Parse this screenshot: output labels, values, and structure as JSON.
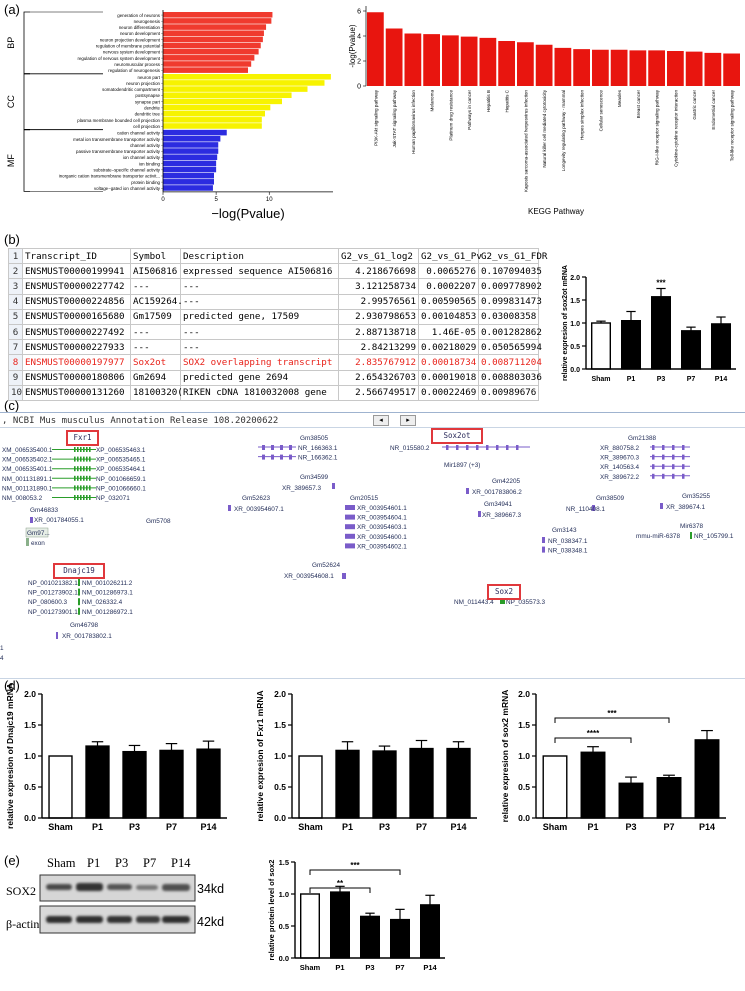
{
  "panel_labels": {
    "a": "(a)",
    "b": "(b)",
    "c": "(c)",
    "d": "(d)",
    "e": "(e)"
  },
  "chart_data": [
    {
      "type": "bar",
      "orientation": "horizontal",
      "xlabel": "−log(Pvalue)",
      "xticks": [
        "0",
        "5",
        "10"
      ],
      "xlim": [
        0,
        16
      ],
      "groups": [
        {
          "name": "BP",
          "color": "#f03a2e",
          "categories": [
            "generation of neurons",
            "neurogenesis",
            "neuron differentiation",
            "neuron development",
            "neuron projection development",
            "regulation of membrane potential",
            "nervous system development",
            "regulation of nervous system development",
            "neuromuscular process",
            "regulation of neurogenesis"
          ],
          "values": [
            10.3,
            10.2,
            9.7,
            9.5,
            9.4,
            9.2,
            9.0,
            8.6,
            8.3,
            8.0
          ]
        },
        {
          "name": "CC",
          "color": "#f7f300",
          "categories": [
            "neuron part",
            "neuron projection",
            "somatodendritic compartment",
            "postsynapse",
            "synapse part",
            "dendrite",
            "dendritic tree",
            "plasma membrane bounded cell projection",
            "cell projection"
          ],
          "values": [
            15.8,
            15.2,
            13.6,
            12.1,
            11.2,
            10.1,
            9.6,
            9.3,
            9.3
          ]
        },
        {
          "name": "MF",
          "color": "#2c2ce0",
          "categories": [
            "cation channel activity",
            "metal ion transmembrane transporter activity",
            "channel activity",
            "passive transmembrane transporter activity",
            "ion channel activity",
            "ion binding",
            "substrate−specific channel activity",
            "inorganic cation transmembrane transporter activit...",
            "protein binding",
            "voltage−gated ion channel activity"
          ],
          "values": [
            6.0,
            5.4,
            5.2,
            5.2,
            5.1,
            5.0,
            5.0,
            4.8,
            4.8,
            4.7
          ]
        }
      ]
    },
    {
      "type": "bar",
      "ylabel": "-log(Pvalue)",
      "xlabel": "KEGG Pathway",
      "yticks": [
        "0",
        "2",
        "4",
        "6"
      ],
      "ylim": [
        0,
        6.4
      ],
      "color": "#e8150f",
      "categories": [
        "PI3K-Akt signaling pathway",
        "Jak-STAT signaling pathway",
        "Human papillomavirus infection",
        "Melanoma",
        "Platinum drug resistance",
        "Pathways in cancer",
        "Hepatitis B",
        "Hepatitis C",
        "Kaposis sarcoma-associated herpesvirus infection",
        "Natural killer cell mediated cytotoxicity",
        "Longevity regulating pathway - mammal",
        "Herpes simplex infection",
        "Cellular senescence",
        "Measles",
        "Breast cancer",
        "RIG-I-like receptor signaling pathway",
        "Cytokine-cytokine receptor interaction",
        "Gastric cancer",
        "Endometrial cancer",
        "Toll-like receptor signaling pathway"
      ],
      "values": [
        5.9,
        4.6,
        4.2,
        4.15,
        4.05,
        3.95,
        3.85,
        3.6,
        3.5,
        3.3,
        3.05,
        2.95,
        2.9,
        2.9,
        2.85,
        2.85,
        2.8,
        2.75,
        2.65,
        2.6
      ]
    },
    {
      "type": "bar",
      "ylabel": "relative expresion of sox2ot mRNA",
      "yticks": [
        "0.0",
        "0.5",
        "1.0",
        "1.5",
        "2.0"
      ],
      "ylim": [
        0,
        2.0
      ],
      "categories": [
        "Sham",
        "P1",
        "P3",
        "P7",
        "P14"
      ],
      "values": [
        1.0,
        1.05,
        1.57,
        0.83,
        0.98
      ],
      "errors": [
        0.04,
        0.2,
        0.18,
        0.08,
        0.15
      ],
      "annotations": [
        {
          "category": "P3",
          "text": "***"
        }
      ]
    },
    {
      "type": "bar",
      "ylabel": "relative expresion of Dnajc19 mRNA",
      "yticks": [
        "0.0",
        "0.5",
        "1.0",
        "1.5",
        "2.0"
      ],
      "ylim": [
        0,
        2.0
      ],
      "categories": [
        "Sham",
        "P1",
        "P3",
        "P7",
        "P14"
      ],
      "values": [
        1.0,
        1.16,
        1.07,
        1.09,
        1.11
      ],
      "errors": [
        0.0,
        0.07,
        0.1,
        0.11,
        0.13
      ]
    },
    {
      "type": "bar",
      "ylabel": "relative expresion of Fxr1 mRNA",
      "yticks": [
        "0.0",
        "0.5",
        "1.0",
        "1.5",
        "2.0"
      ],
      "ylim": [
        0,
        2.0
      ],
      "categories": [
        "Sham",
        "P1",
        "P3",
        "P7",
        "P14"
      ],
      "values": [
        1.0,
        1.09,
        1.08,
        1.12,
        1.12
      ],
      "errors": [
        0.0,
        0.14,
        0.08,
        0.13,
        0.11
      ]
    },
    {
      "type": "bar",
      "ylabel": "relative expresion of sox2 mRNA",
      "yticks": [
        "0.0",
        "0.5",
        "1.0",
        "1.5",
        "2.0"
      ],
      "ylim": [
        0,
        2.0
      ],
      "categories": [
        "Sham",
        "P1",
        "P3",
        "P7",
        "P14"
      ],
      "values": [
        1.0,
        1.06,
        0.56,
        0.65,
        1.26
      ],
      "errors": [
        0.0,
        0.09,
        0.1,
        0.04,
        0.15
      ],
      "brackets": [
        {
          "from": "Sham",
          "to": "P3",
          "text": "****"
        },
        {
          "from": "Sham",
          "to": "P7",
          "text": "***"
        }
      ]
    },
    {
      "type": "bar",
      "ylabel": "relative protein level of sox2",
      "yticks": [
        "0.0",
        "0.5",
        "1.0",
        "1.5"
      ],
      "ylim": [
        0,
        1.5
      ],
      "categories": [
        "Sham",
        "P1",
        "P3",
        "P7",
        "P14"
      ],
      "values": [
        1.0,
        1.03,
        0.65,
        0.6,
        0.83
      ],
      "errors": [
        0.0,
        0.09,
        0.05,
        0.16,
        0.15
      ],
      "brackets": [
        {
          "from": "Sham",
          "to": "P3",
          "text": "**"
        },
        {
          "from": "Sham",
          "to": "P7",
          "text": "***"
        }
      ]
    }
  ],
  "table": {
    "headers": [
      "",
      "Transcript_ID",
      "Symbol",
      "Description",
      "G2_vs_G1_log2",
      "G2_vs_G1_Pv",
      "G2_vs_G1_FDR"
    ],
    "rows": [
      [
        "2",
        "ENSMUST00000199941",
        "AI506816",
        "expressed sequence AI506816",
        "4.218676698",
        "0.0065276",
        "0.107094035"
      ],
      [
        "3",
        "ENSMUST00000227742",
        "---",
        "---",
        "3.121258734",
        "0.0002207",
        "0.009778902"
      ],
      [
        "4",
        "ENSMUST00000224856",
        "AC159264.",
        "---",
        "2.99576561",
        "0.00590565",
        "0.099831473"
      ],
      [
        "5",
        "ENSMUST00000165680",
        "Gm17509",
        "predicted gene, 17509",
        "2.930798653",
        "0.00104853",
        "0.03008358"
      ],
      [
        "6",
        "ENSMUST00000227492",
        "---",
        "---",
        "2.887138718",
        "1.46E-05",
        "0.001282862"
      ],
      [
        "7",
        "ENSMUST00000227933",
        "---",
        "---",
        "2.84213299",
        "0.00218029",
        "0.050565994"
      ],
      [
        "8",
        "ENSMUST00000197977",
        "Sox2ot",
        "SOX2 overlapping transcript",
        "2.835767912",
        "0.00018734",
        "0.008711204"
      ],
      [
        "9",
        "ENSMUST00000180806",
        "Gm2694",
        "predicted gene 2694",
        "2.654326703",
        "0.00019018",
        "0.008803036"
      ],
      [
        "10",
        "ENSMUST00000131260",
        "18100320(",
        "RIKEN cDNA 1810032008 gene",
        "2.566749517",
        "0.00022469",
        "0.00989676"
      ]
    ],
    "first_row_number": "1",
    "highlight_row": 6
  },
  "ncbi": {
    "title": ", NCBI Mus musculus Annotation Release 108.20200622",
    "genes": {
      "fxr1": "Fxr1",
      "sox2ot": "Sox2ot",
      "dnajc19": "Dnajc19",
      "sox2": "Sox2"
    },
    "transcripts": {
      "fxr1": [
        "XM_006535400.1",
        "XM_006535402.1",
        "XM_006535401.1",
        "NM_001131891.1",
        "NM_001131890.1",
        "NM_008053.2"
      ],
      "fxr1b": [
        "XP_006535463.1",
        "XP_006535465.1",
        "XP_006535464.1",
        "NP_001066659.1",
        "NP_001066660.1",
        "NP_032071"
      ],
      "gm38505": "Gm38505",
      "gm38505_tx": [
        "NR_166363.1",
        "NR_166362.1"
      ],
      "gm34599": "Gm34599",
      "gm34599_tx": "XR_389657.3",
      "gm52623": "Gm52623",
      "gm52623_tx": "XR_003954607.1",
      "gm20515": "Gm20515",
      "gm20515_tx": [
        "XR_003954601.1",
        "XR_003954604.1",
        "XR_003954603.1",
        "XR_003954600.1",
        "XR_003954602.1"
      ],
      "gm52624": "Gm52624",
      "gm52624_tx": "XR_003954608.1",
      "sox2ot_tx": "NR_015580.2",
      "mir1897": "Mir1897 (+3)",
      "gm42205": "Gm42205",
      "gm42205_tx": "XR_001783806.2",
      "gm34941": "Gm34941",
      "gm34941_tx": "XR_389667.3",
      "gm38509": "Gm38509",
      "gm38509_tx": "NR_110408.1",
      "gm3143": "Gm3143",
      "gm3143_tx": [
        "NR_038347.1",
        "NR_038348.1"
      ],
      "gm21388": "Gm21388",
      "gm21388_tx": [
        "XR_880758.2",
        "XR_389670.3",
        "XR_140563.4",
        "XR_389672.2"
      ],
      "gm35255": "Gm35255",
      "gm35255_tx": "XR_389674.1",
      "mir6378": "Mir6378",
      "mir6378_tx": "mmu-miR-6378",
      "mir6378_tx2": "NR_105799.1",
      "sox2_tx": "NM_011443.4",
      "sox2_tx2": "NP_035573.3",
      "gm46833": "Gm46833",
      "gm46833_tx": "XR_001784055.1",
      "gm5708": "Gm5708",
      "gm97": "Gm97...",
      "exon": "exon",
      "dnajc19_tx": [
        "NP_001021382.1",
        "NP_001273902.1",
        "NP_080600.3",
        "NP_001273901.1"
      ],
      "dnajc19_tx2": [
        "NM_001026211.2",
        "NM_001286973.1",
        "NM_026332.4",
        "NM_001286972.1"
      ],
      "gm46798": "Gm46798",
      "gm46798_tx": "XR_001783802.1"
    }
  },
  "blot": {
    "lanes": [
      "Sham",
      "P1",
      "P3",
      "P7",
      "P14"
    ],
    "rows": [
      {
        "name": "SOX2",
        "size": "34kd"
      },
      {
        "name": "β-actin",
        "size": "42kd"
      }
    ]
  }
}
